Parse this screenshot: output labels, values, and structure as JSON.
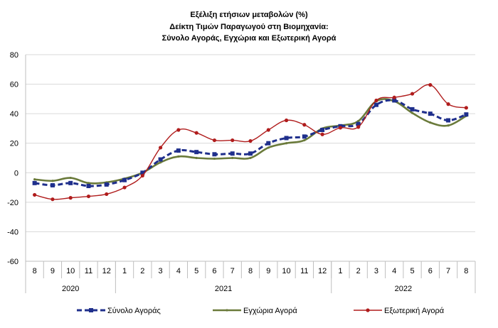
{
  "chart_data": {
    "type": "line",
    "title_lines": [
      "Εξέλιξη ετήσιων μεταβολών (%)",
      "Δείκτη Τιμών Παραγωγού στη Βιομηχανία:",
      "Σύνολο Αγοράς, Εγχώρια και Εξωτερική Αγορά"
    ],
    "xlabel": "",
    "ylabel": "",
    "ylim": [
      -60,
      80
    ],
    "yticks": [
      80,
      60,
      40,
      20,
      0,
      -20,
      -40,
      -60
    ],
    "x_month_labels": [
      "8",
      "9",
      "10",
      "11",
      "12",
      "1",
      "2",
      "3",
      "4",
      "5",
      "6",
      "7",
      "8",
      "9",
      "10",
      "11",
      "12",
      "1",
      "2",
      "3",
      "4",
      "5",
      "6",
      "7",
      "8"
    ],
    "year_groups": [
      {
        "label": "2020",
        "count": 5
      },
      {
        "label": "2021",
        "count": 12
      },
      {
        "label": "2022",
        "count": 8
      }
    ],
    "grid": true,
    "legend_position": "bottom",
    "series": [
      {
        "name": "Σύνολο Αγοράς",
        "color": "#1f2f8c",
        "style": "dashed-square",
        "values": [
          -7,
          -8.5,
          -7,
          -9,
          -8,
          -5,
          0,
          9,
          15,
          14,
          12.5,
          13,
          13,
          20,
          23.5,
          24.5,
          29,
          31.5,
          33,
          46,
          49,
          43,
          40,
          35.5,
          39.5
        ]
      },
      {
        "name": "Εγχώρια Αγορά",
        "color": "#6a7a3a",
        "style": "solid-dot",
        "values": [
          -4.5,
          -5.5,
          -3.5,
          -7,
          -6.5,
          -4,
          0,
          7,
          11,
          10,
          9.5,
          10,
          10,
          17,
          20,
          22,
          30,
          32,
          35,
          48.5,
          48.5,
          40.5,
          34,
          32,
          38.5
        ]
      },
      {
        "name": "Εξωτερική Αγορά",
        "color": "#b01c1c",
        "style": "solid-dot",
        "values": [
          -15,
          -18,
          -17,
          -16,
          -14.5,
          -10,
          -2,
          17,
          29,
          27,
          22,
          22,
          21.5,
          29,
          35.5,
          32.5,
          26,
          30.5,
          31,
          49,
          51,
          53.5,
          59.5,
          46.5,
          44
        ]
      }
    ]
  }
}
